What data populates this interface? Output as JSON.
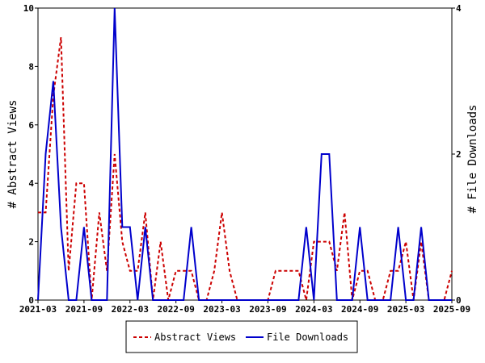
{
  "chart_data": {
    "type": "line",
    "x_tick_labels": [
      "2021-03",
      "2021-09",
      "2022-03",
      "2022-09",
      "2023-03",
      "2023-09",
      "2024-03",
      "2024-09",
      "2025-03",
      "2025-09"
    ],
    "x_months": [
      "2021-03",
      "2021-04",
      "2021-05",
      "2021-06",
      "2021-07",
      "2021-08",
      "2021-09",
      "2021-10",
      "2021-11",
      "2021-12",
      "2022-01",
      "2022-02",
      "2022-03",
      "2022-04",
      "2022-05",
      "2022-06",
      "2022-07",
      "2022-08",
      "2022-09",
      "2022-10",
      "2022-11",
      "2022-12",
      "2023-01",
      "2023-02",
      "2023-03",
      "2023-04",
      "2023-05",
      "2023-06",
      "2023-07",
      "2023-08",
      "2023-09",
      "2023-10",
      "2023-11",
      "2023-12",
      "2024-01",
      "2024-02",
      "2024-03",
      "2024-04",
      "2024-05",
      "2024-06",
      "2024-07",
      "2024-08",
      "2024-09",
      "2024-10",
      "2024-11",
      "2024-12",
      "2025-01",
      "2025-02",
      "2025-03",
      "2025-04",
      "2025-05",
      "2025-06",
      "2025-07",
      "2025-08",
      "2025-09"
    ],
    "ylabel_left": "# Abstract Views",
    "ylabel_right": "# File Downloads",
    "ylim_left": [
      0,
      10
    ],
    "ylim_right": [
      0,
      4
    ],
    "y_ticks_left": [
      "0",
      "2",
      "4",
      "6",
      "8",
      "10"
    ],
    "y_ticks_right": [
      "0",
      "2",
      "4"
    ],
    "legend_position": "bottom-center",
    "series": [
      {
        "name": "Abstract Views",
        "axis": "left",
        "color": "#cc0000",
        "dash": true,
        "values": [
          3,
          3,
          7,
          9,
          1,
          4,
          4,
          0,
          3,
          1,
          5,
          2,
          1,
          1,
          3,
          0,
          2,
          0,
          1,
          1,
          1,
          0,
          0,
          1,
          3,
          1,
          0,
          0,
          0,
          0,
          0,
          1,
          1,
          1,
          1,
          0,
          2,
          2,
          2,
          1,
          3,
          0,
          1,
          1,
          0,
          0,
          1,
          1,
          2,
          0,
          2,
          0,
          0,
          0,
          1
        ]
      },
      {
        "name": "File Downloads",
        "axis": "right",
        "color": "#0000cc",
        "dash": false,
        "values": [
          0,
          2,
          3,
          1,
          0,
          0,
          1,
          0,
          0,
          0,
          4,
          1,
          1,
          0,
          1,
          0,
          0,
          0,
          0,
          0,
          1,
          0,
          0,
          0,
          0,
          0,
          0,
          0,
          0,
          0,
          0,
          0,
          0,
          0,
          0,
          1,
          0,
          2,
          2,
          0,
          0,
          0,
          1,
          0,
          0,
          0,
          0,
          1,
          0,
          0,
          1,
          0,
          0,
          0,
          0
        ]
      }
    ]
  },
  "colors": {
    "frame": "#000000",
    "background": "#ffffff"
  }
}
